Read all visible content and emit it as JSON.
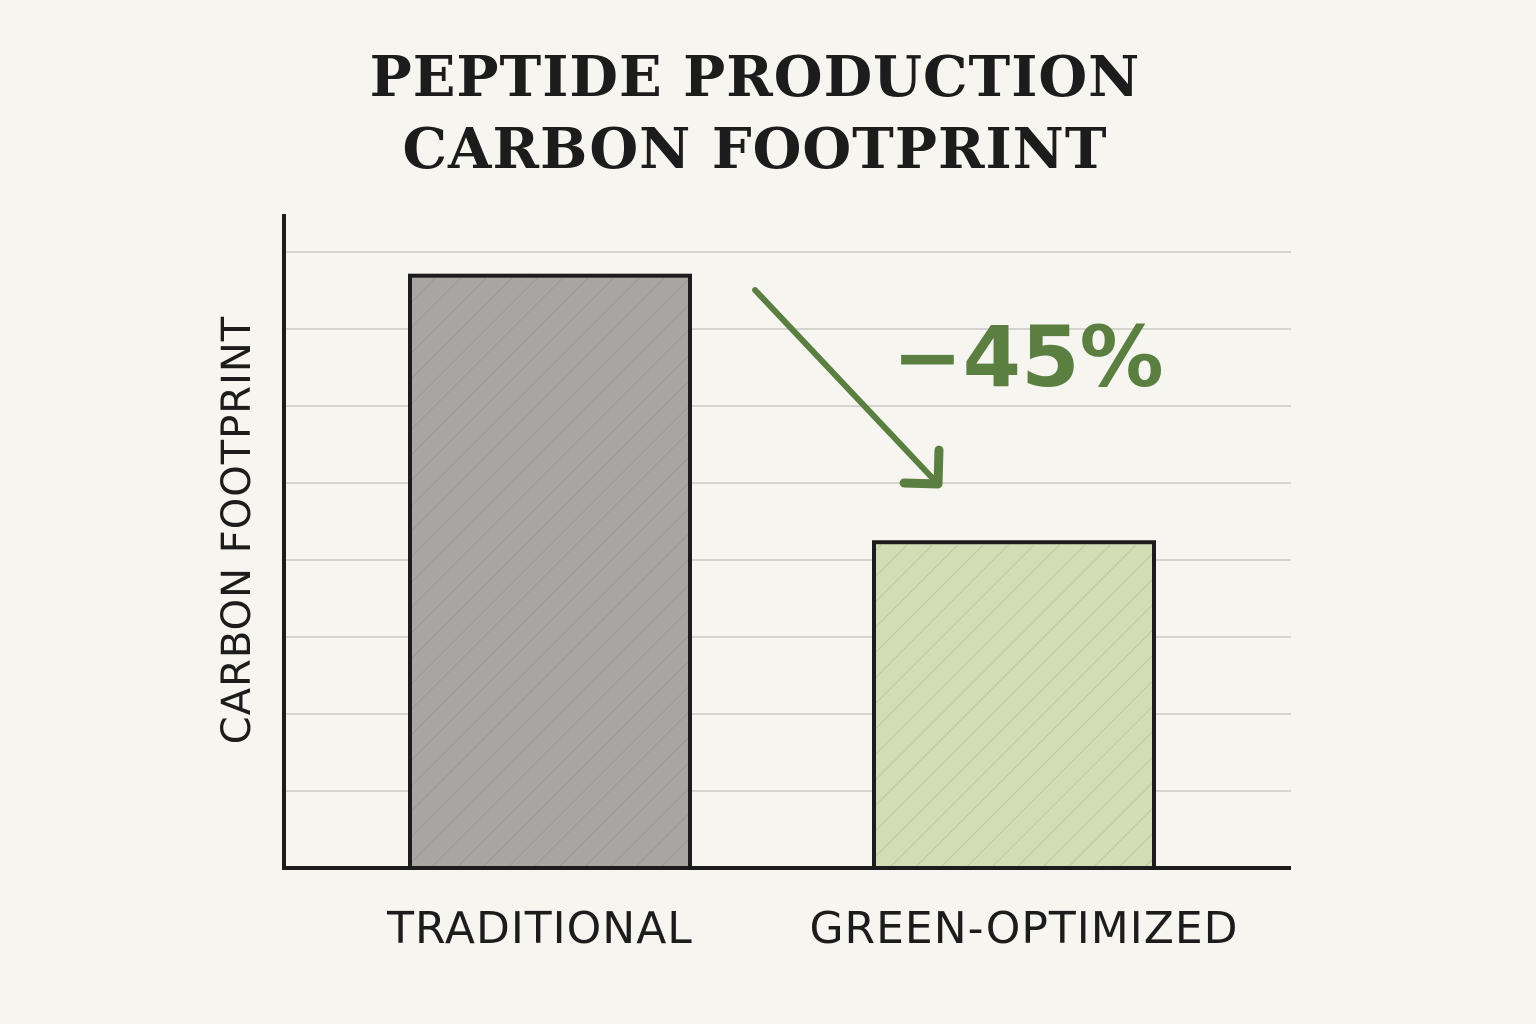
{
  "chart_data": {
    "type": "bar",
    "title": [
      "PEPTIDE PRODUCTION",
      "CARBON FOOTPRINT"
    ],
    "ylabel": "CARBON FOOTPRINT",
    "xlabel": "",
    "categories": [
      "TRADITIONAL",
      "GREEN-OPTIMIZED"
    ],
    "values": [
      100,
      55
    ],
    "ylim": [
      0,
      117
    ],
    "grid": true,
    "bar_colors": [
      "#a8a6a2",
      "#d3dcb4"
    ],
    "annotation": {
      "text": "−45%",
      "color": "#5a7f41"
    }
  }
}
